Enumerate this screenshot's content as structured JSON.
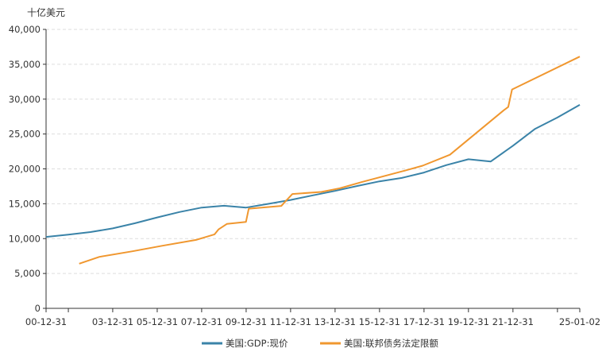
{
  "chart_data": {
    "type": "line",
    "unit_label": "十亿美元",
    "ylim": [
      0,
      40000
    ],
    "y_ticks": [
      0,
      5000,
      10000,
      15000,
      20000,
      25000,
      30000,
      35000,
      40000
    ],
    "y_tick_labels": [
      "0",
      "5,000",
      "10,000",
      "15,000",
      "20,000",
      "25,000",
      "30,000",
      "35,000",
      "40,000"
    ],
    "x_axis": {
      "start": "2000-12-31",
      "end": "2025-01-02"
    },
    "x_tick_labels": [
      {
        "date": "2000-12-31",
        "label": "00-12-31"
      },
      {
        "date": "2003-12-31",
        "label": "03-12-31"
      },
      {
        "date": "2005-12-31",
        "label": "05-12-31"
      },
      {
        "date": "2007-12-31",
        "label": "07-12-31"
      },
      {
        "date": "2009-12-31",
        "label": "09-12-31"
      },
      {
        "date": "2011-12-31",
        "label": "11-12-31"
      },
      {
        "date": "2013-12-31",
        "label": "13-12-31"
      },
      {
        "date": "2015-12-31",
        "label": "15-12-31"
      },
      {
        "date": "2017-12-31",
        "label": "17-12-31"
      },
      {
        "date": "2019-12-31",
        "label": "19-12-31"
      },
      {
        "date": "2021-12-31",
        "label": "21-12-31"
      },
      {
        "date": "2025-01-02",
        "label": "25-01-02"
      }
    ],
    "x_minor_ticks": [
      "2002-01-01",
      "2024-01-01"
    ],
    "grid": true,
    "legend_position": "bottom",
    "series": [
      {
        "name": "美国:GDP:现价",
        "color": "#3a83a8",
        "points": [
          [
            "2000-12-31",
            10250
          ],
          [
            "2001-12-31",
            10580
          ],
          [
            "2002-12-31",
            10940
          ],
          [
            "2003-12-31",
            11460
          ],
          [
            "2004-12-31",
            12210
          ],
          [
            "2005-12-31",
            13040
          ],
          [
            "2006-12-31",
            13810
          ],
          [
            "2007-12-31",
            14450
          ],
          [
            "2008-12-31",
            14710
          ],
          [
            "2009-12-31",
            14450
          ],
          [
            "2010-12-31",
            14990
          ],
          [
            "2011-12-31",
            15540
          ],
          [
            "2012-12-31",
            16200
          ],
          [
            "2013-12-31",
            16840
          ],
          [
            "2014-12-31",
            17550
          ],
          [
            "2015-12-31",
            18210
          ],
          [
            "2016-12-31",
            18700
          ],
          [
            "2017-12-31",
            19480
          ],
          [
            "2018-12-31",
            20530
          ],
          [
            "2019-12-31",
            21380
          ],
          [
            "2020-12-31",
            21060
          ],
          [
            "2021-12-31",
            23320
          ],
          [
            "2022-12-31",
            25740
          ],
          [
            "2023-12-31",
            27360
          ],
          [
            "2025-01-02",
            29180
          ]
        ]
      },
      {
        "name": "美国:联邦债务法定限额",
        "color": "#f0972f",
        "points": [
          [
            "2002-06-28",
            6400
          ],
          [
            "2003-05-27",
            7384
          ],
          [
            "2004-11-19",
            8184
          ],
          [
            "2006-03-20",
            8965
          ],
          [
            "2007-09-29",
            9815
          ],
          [
            "2008-07-30",
            10615
          ],
          [
            "2008-10-03",
            11315
          ],
          [
            "2009-02-17",
            12104
          ],
          [
            "2009-12-28",
            12394
          ],
          [
            "2010-02-12",
            14294
          ],
          [
            "2011-08-02",
            14694
          ],
          [
            "2011-09-22",
            15194
          ],
          [
            "2012-01-30",
            16394
          ],
          [
            "2013-05-19",
            16699
          ],
          [
            "2014-03-15",
            17212
          ],
          [
            "2015-03-15",
            18113
          ],
          [
            "2017-03-16",
            19809
          ],
          [
            "2017-12-08",
            20456
          ],
          [
            "2019-03-02",
            22030
          ],
          [
            "2021-08-01",
            28401
          ],
          [
            "2021-10-14",
            28881
          ],
          [
            "2021-12-16",
            31381
          ],
          [
            "2025-01-02",
            36104
          ]
        ]
      }
    ]
  }
}
